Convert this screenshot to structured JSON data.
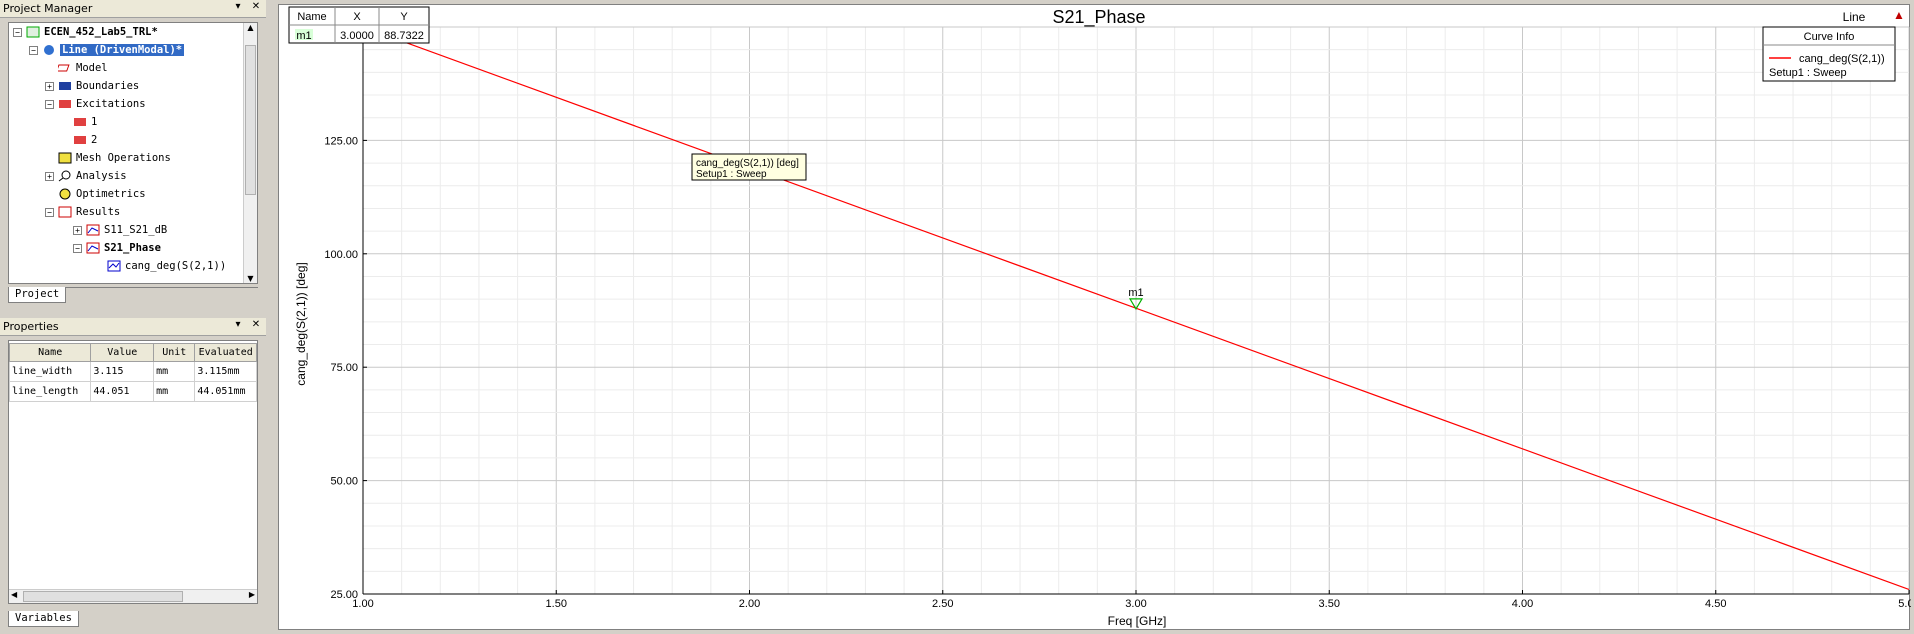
{
  "project_manager": {
    "title": "Project Manager",
    "tab": "Project",
    "tree": [
      {
        "label": "ECEN_452_Lab5_TRL*",
        "bold": true
      },
      {
        "label": "Line (DrivenModal)*",
        "selected": true
      },
      {
        "label": "Model"
      },
      {
        "label": "Boundaries"
      },
      {
        "label": "Excitations"
      },
      {
        "label": "1"
      },
      {
        "label": "2"
      },
      {
        "label": "Mesh Operations"
      },
      {
        "label": "Analysis"
      },
      {
        "label": "Optimetrics"
      },
      {
        "label": "Results"
      },
      {
        "label": "S11_S21_dB"
      },
      {
        "label": "S21_Phase",
        "bold": true
      },
      {
        "label": "cang_deg(S(2,1))"
      }
    ]
  },
  "properties": {
    "title": "Properties",
    "tab": "Variables",
    "columns": [
      "Name",
      "Value",
      "Unit",
      "Evaluated"
    ],
    "rows": [
      [
        "line_width",
        "3.115",
        "mm",
        "3.115mm"
      ],
      [
        "line_length",
        "44.051",
        "mm",
        "44.051mm"
      ]
    ]
  },
  "marker_table": {
    "columns": [
      "Name",
      "X",
      "Y"
    ],
    "rows": [
      [
        "m1",
        "3.0000",
        "88.7322"
      ]
    ]
  },
  "curve_info": {
    "title": "Curve Info",
    "entry": "cang_deg(S(2,1))",
    "setup": "Setup1 : Sweep"
  },
  "tooltip": {
    "line1": "cang_deg(S(2,1)) [deg]",
    "line2": "Setup1 : Sweep"
  },
  "corner_label": "Line",
  "marker_label": "m1",
  "colors": {
    "trace": "#ff0000",
    "marker": "#00b000",
    "selection": "#316ac5"
  },
  "chart_data": {
    "type": "line",
    "title": "S21_Phase",
    "xlabel": "Freq [GHz]",
    "ylabel": "cang_deg(S(2,1)) [deg]",
    "xlim": [
      1.0,
      5.0
    ],
    "ylim": [
      25.0,
      150.0
    ],
    "xticks": [
      "1.00",
      "1.50",
      "2.00",
      "2.50",
      "3.00",
      "3.50",
      "4.00",
      "4.50",
      "5.00"
    ],
    "yticks": [
      "25.00",
      "50.00",
      "75.00",
      "100.00",
      "125.00"
    ],
    "grid": true,
    "series": [
      {
        "name": "cang_deg(S(2,1))",
        "x": [
          1.0,
          5.0
        ],
        "y": [
          150.0,
          26.0
        ]
      }
    ],
    "markers": [
      {
        "name": "m1",
        "x": 3.0,
        "y": 88.7322
      }
    ]
  }
}
